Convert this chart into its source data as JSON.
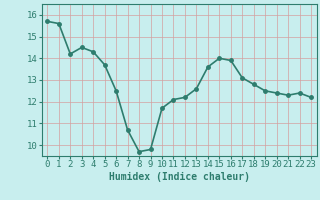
{
  "x": [
    0,
    1,
    2,
    3,
    4,
    5,
    6,
    7,
    8,
    9,
    10,
    11,
    12,
    13,
    14,
    15,
    16,
    17,
    18,
    19,
    20,
    21,
    22,
    23
  ],
  "y": [
    15.7,
    15.6,
    14.2,
    14.5,
    14.3,
    13.7,
    12.5,
    10.7,
    9.7,
    9.8,
    11.7,
    12.1,
    12.2,
    12.6,
    13.6,
    14.0,
    13.9,
    13.1,
    12.8,
    12.5,
    12.4,
    12.3,
    12.4,
    12.2
  ],
  "line_color": "#2e7d6e",
  "bg_color": "#c8eeee",
  "grid_color": "#d4a0a0",
  "xlabel": "Humidex (Indice chaleur)",
  "ylim": [
    9.5,
    16.5
  ],
  "xlim": [
    -0.5,
    23.5
  ],
  "yticks": [
    10,
    11,
    12,
    13,
    14,
    15,
    16
  ],
  "xticks": [
    0,
    1,
    2,
    3,
    4,
    5,
    6,
    7,
    8,
    9,
    10,
    11,
    12,
    13,
    14,
    15,
    16,
    17,
    18,
    19,
    20,
    21,
    22,
    23
  ],
  "marker_size": 2.5,
  "line_width": 1.2,
  "xlabel_fontsize": 7,
  "tick_fontsize": 6.5
}
